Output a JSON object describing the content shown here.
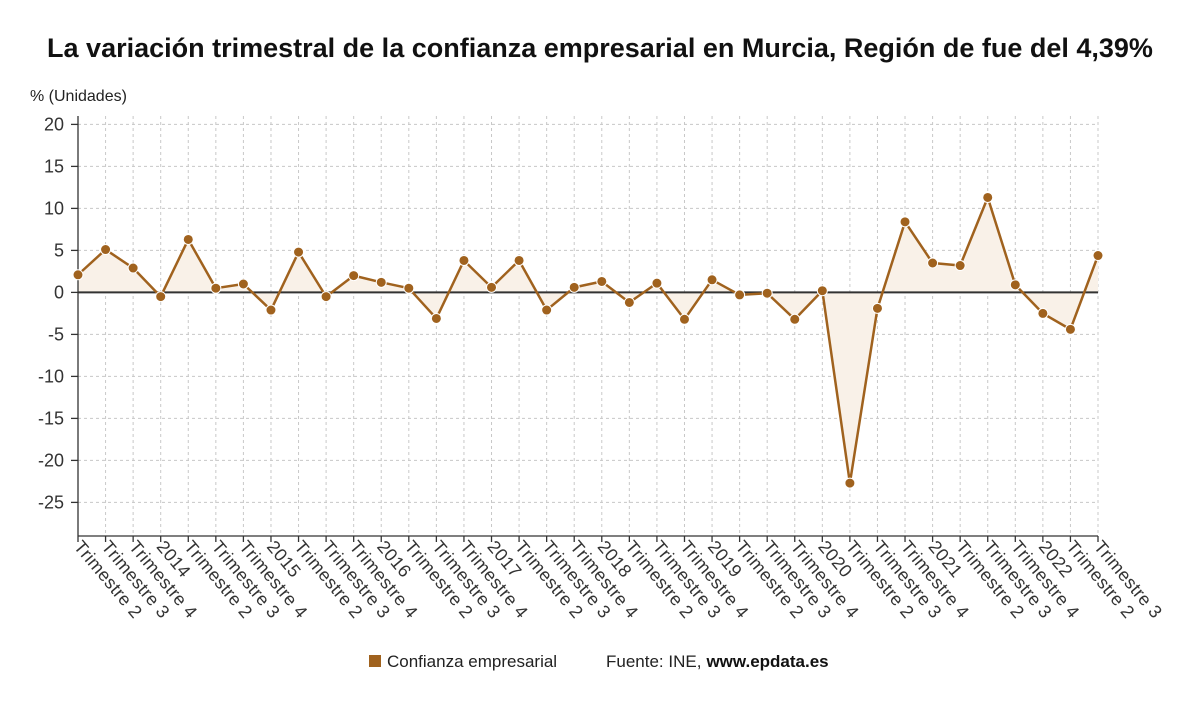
{
  "chart_data": {
    "type": "line",
    "title": "La variación trimestral de la confianza empresarial en Murcia, Región de fue del 4,39%",
    "ylabel": "% (Unidades)",
    "ylim": [
      -29,
      21
    ],
    "y_ticks": [
      20,
      15,
      10,
      5,
      0,
      -5,
      -10,
      -15,
      -20,
      -25
    ],
    "grid": true,
    "fill_to_zero": true,
    "legend_position": "bottom",
    "categories": [
      "Trimestre 2",
      "Trimestre 3",
      "Trimestre 4",
      "2014",
      "Trimestre 2",
      "Trimestre 3",
      "Trimestre 4",
      "2015",
      "Trimestre 2",
      "Trimestre 3",
      "Trimestre 4",
      "2016",
      "Trimestre 2",
      "Trimestre 3",
      "Trimestre 4",
      "2017",
      "Trimestre 2",
      "Trimestre 3",
      "Trimestre 4",
      "2018",
      "Trimestre 2",
      "Trimestre 3",
      "Trimestre 4",
      "2019",
      "Trimestre 2",
      "Trimestre 3",
      "Trimestre 4",
      "2020",
      "Trimestre 2",
      "Trimestre 3",
      "Trimestre 4",
      "2021",
      "Trimestre 2",
      "Trimestre 3",
      "Trimestre 4",
      "2022",
      "Trimestre 2",
      "Trimestre 3"
    ],
    "series": [
      {
        "name": "Confianza empresarial",
        "color": "#a0621e",
        "values": [
          2.1,
          5.1,
          2.9,
          -0.5,
          6.3,
          0.5,
          1.0,
          -2.1,
          4.8,
          -0.5,
          2.0,
          1.2,
          0.5,
          -3.1,
          3.8,
          0.6,
          3.8,
          -2.1,
          0.6,
          1.3,
          -1.2,
          1.1,
          -3.2,
          1.5,
          -0.3,
          -0.1,
          -3.2,
          0.2,
          -22.7,
          -1.9,
          8.4,
          3.5,
          3.2,
          11.3,
          0.9,
          -2.5,
          -4.4,
          4.39
        ]
      }
    ]
  },
  "footer": {
    "source_label": "Fuente: INE,",
    "source_site": "www.epdata.es"
  },
  "colors": {
    "series": "#a0621e",
    "area_fill": "#f9f1e8",
    "zero_line": "#333333",
    "grid": "#c8c8c8",
    "axis": "#333333"
  }
}
